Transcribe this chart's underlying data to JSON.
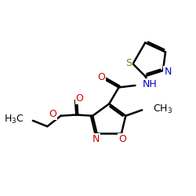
{
  "bg_color": "#ffffff",
  "bond_color": "#000000",
  "nitrogen_color": "#0000cc",
  "oxygen_color": "#cc0000",
  "sulfur_color": "#808000",
  "carbon_color": "#000000",
  "line_width": 1.8,
  "figsize": [
    2.5,
    2.5
  ],
  "dpi": 100,
  "xlim": [
    0,
    10
  ],
  "ylim": [
    0,
    10
  ]
}
